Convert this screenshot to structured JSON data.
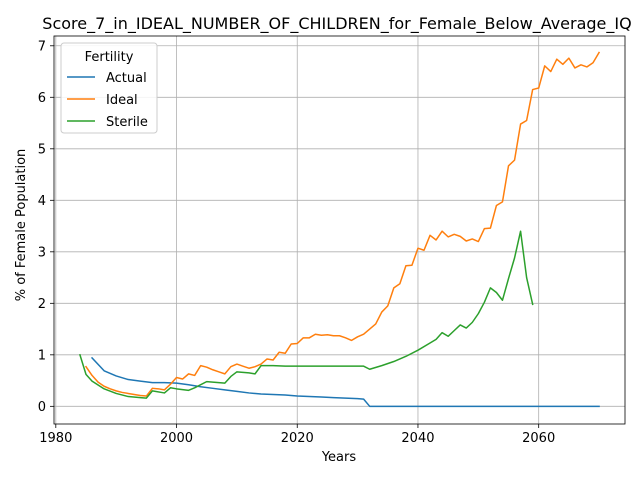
{
  "chart_data": {
    "type": "line",
    "title": "Score_7_in_IDEAL_NUMBER_OF_CHILDREN_for_Female_Below_Average_IQ",
    "xlabel": "Years",
    "ylabel": "% of Female Population",
    "xlim": [
      1979.7,
      2074.3
    ],
    "ylim": [
      -0.343,
      7.19
    ],
    "xticks": [
      1980,
      2000,
      2020,
      2040,
      2060
    ],
    "yticks": [
      0,
      1,
      2,
      3,
      4,
      5,
      6,
      7
    ],
    "grid": true,
    "legend": {
      "title": "Fertility",
      "placement": "top-left"
    },
    "series": [
      {
        "name": "Actual",
        "color": "#1f77b4",
        "x": [
          1986,
          1988,
          1990,
          1992,
          1994,
          1996,
          1998,
          2000,
          2002,
          2004,
          2006,
          2008,
          2010,
          2012,
          2014,
          2016,
          2018,
          2020,
          2022,
          2024,
          2026,
          2028,
          2030,
          2031,
          2032,
          2034,
          2040,
          2050,
          2060,
          2070
        ],
        "y": [
          0.94,
          0.69,
          0.59,
          0.52,
          0.49,
          0.46,
          0.46,
          0.45,
          0.42,
          0.38,
          0.35,
          0.32,
          0.29,
          0.26,
          0.24,
          0.23,
          0.22,
          0.2,
          0.19,
          0.18,
          0.17,
          0.16,
          0.15,
          0.14,
          0.0,
          0.0,
          0.0,
          0.0,
          0.0,
          0.0
        ]
      },
      {
        "name": "Ideal",
        "color": "#ff7f0e",
        "x": [
          1985,
          1986,
          1987,
          1988,
          1989,
          1990,
          1991,
          1992,
          1993,
          1994,
          1995,
          1996,
          1997,
          1998,
          1999,
          2000,
          2001,
          2002,
          2003,
          2004,
          2005,
          2006,
          2007,
          2008,
          2009,
          2010,
          2011,
          2012,
          2013,
          2014,
          2015,
          2016,
          2017,
          2018,
          2019,
          2020,
          2021,
          2022,
          2023,
          2024,
          2025,
          2026,
          2027,
          2028,
          2029,
          2030,
          2031,
          2032,
          2033,
          2034,
          2035,
          2036,
          2037,
          2038,
          2039,
          2040,
          2041,
          2042,
          2043,
          2044,
          2045,
          2046,
          2047,
          2048,
          2049,
          2050,
          2051,
          2052,
          2053,
          2054,
          2055,
          2056,
          2057,
          2058,
          2059,
          2060,
          2061,
          2062,
          2063,
          2064,
          2065,
          2066,
          2067,
          2068,
          2069,
          2070
        ],
        "y": [
          0.77,
          0.6,
          0.47,
          0.39,
          0.34,
          0.3,
          0.27,
          0.25,
          0.23,
          0.21,
          0.2,
          0.35,
          0.34,
          0.32,
          0.43,
          0.56,
          0.53,
          0.63,
          0.6,
          0.79,
          0.76,
          0.71,
          0.67,
          0.63,
          0.77,
          0.82,
          0.78,
          0.74,
          0.77,
          0.82,
          0.92,
          0.9,
          1.05,
          1.03,
          1.21,
          1.22,
          1.33,
          1.33,
          1.4,
          1.38,
          1.39,
          1.37,
          1.37,
          1.33,
          1.28,
          1.35,
          1.4,
          1.5,
          1.6,
          1.83,
          1.95,
          2.3,
          2.38,
          2.73,
          2.74,
          3.07,
          3.03,
          3.32,
          3.23,
          3.4,
          3.29,
          3.34,
          3.3,
          3.21,
          3.25,
          3.2,
          3.45,
          3.46,
          3.9,
          3.97,
          4.67,
          4.78,
          5.48,
          5.55,
          6.15,
          6.18,
          6.61,
          6.5,
          6.74,
          6.64,
          6.76,
          6.57,
          6.63,
          6.59,
          6.67,
          6.87
        ]
      },
      {
        "name": "Sterile",
        "color": "#2ca02c",
        "x": [
          1984,
          1985,
          1986,
          1988,
          1990,
          1992,
          1994,
          1995,
          1996,
          1998,
          1999,
          2000,
          2002,
          2003,
          2005,
          2008,
          2009,
          2010,
          2012,
          2013,
          2014,
          2016,
          2018,
          2020,
          2025,
          2030,
          2031,
          2032,
          2034,
          2036,
          2038,
          2040,
          2042,
          2043,
          2044,
          2045,
          2046,
          2047,
          2048,
          2049,
          2050,
          2051,
          2052,
          2053,
          2054,
          2055,
          2056,
          2057,
          2058,
          2059
        ],
        "y": [
          1.0,
          0.62,
          0.49,
          0.34,
          0.25,
          0.19,
          0.17,
          0.16,
          0.3,
          0.26,
          0.36,
          0.34,
          0.31,
          0.36,
          0.48,
          0.45,
          0.58,
          0.67,
          0.65,
          0.63,
          0.79,
          0.79,
          0.78,
          0.78,
          0.78,
          0.78,
          0.78,
          0.72,
          0.79,
          0.87,
          0.97,
          1.09,
          1.23,
          1.3,
          1.43,
          1.36,
          1.47,
          1.58,
          1.52,
          1.63,
          1.8,
          2.02,
          2.3,
          2.21,
          2.06,
          2.48,
          2.88,
          3.4,
          2.5,
          1.98
        ]
      }
    ]
  }
}
